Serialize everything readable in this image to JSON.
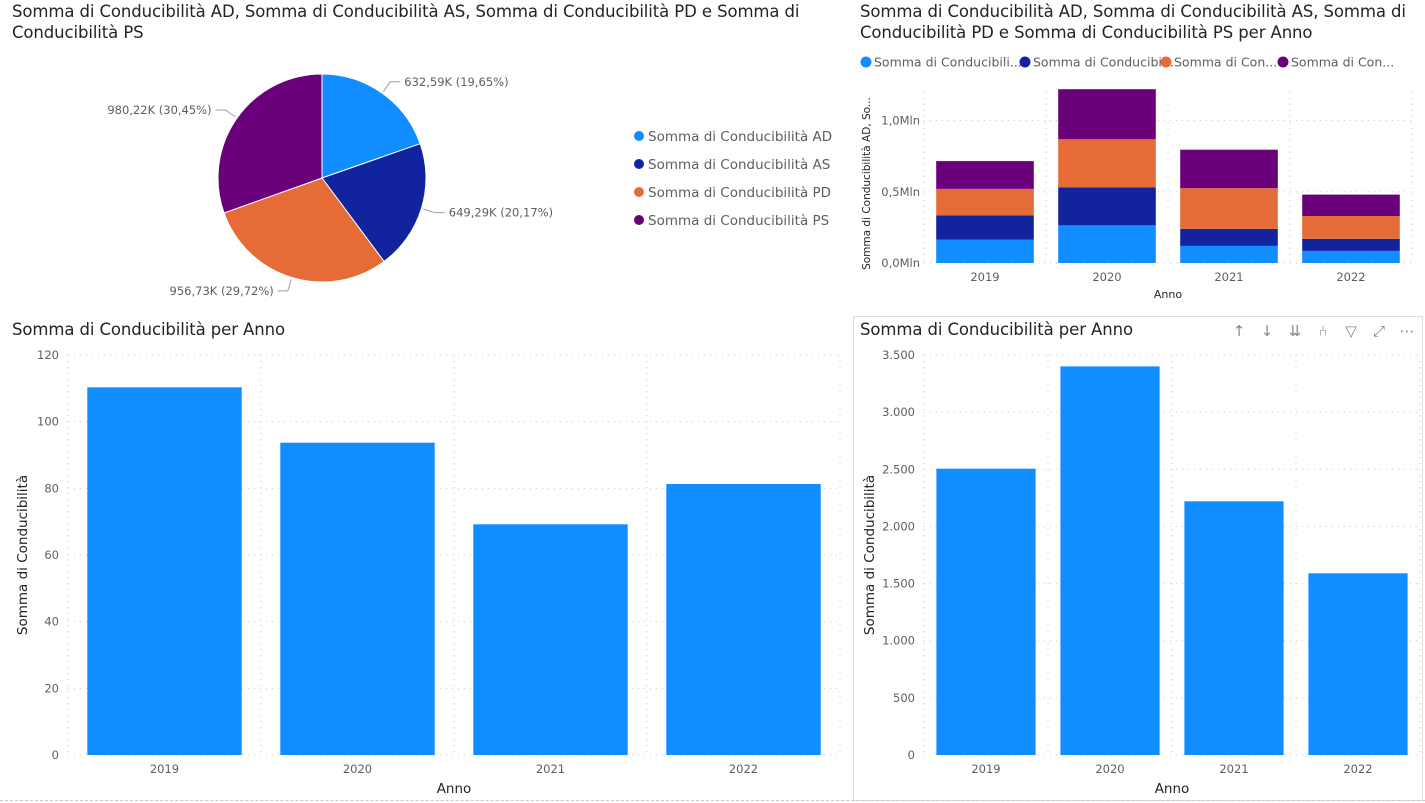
{
  "colors": {
    "ad": "#118DFF",
    "as": "#12239E",
    "pd": "#E66C37",
    "ps": "#6B007B",
    "bar": "#118DFF"
  },
  "toolbar": {
    "icons": [
      "arrow-up-icon",
      "arrow-down-icon",
      "double-arrow-down-icon",
      "expand-hierarchy-icon",
      "filter-icon",
      "focus-mode-icon",
      "more-options-icon"
    ],
    "glyphs": [
      "↑",
      "↓",
      "⇊",
      "⑃",
      "▽",
      "⤢",
      "⋯"
    ]
  },
  "chart_data": [
    {
      "type": "pie",
      "title": "Somma di Conducibilità AD, Somma di Conducibilità AS, Somma di Conducibilità PD e Somma di Conducibilità PS",
      "title_line1": "Somma di Conducibilità AD, Somma di Conducibilità AS, Somma di Conducibilità PD e Somma di",
      "title_line2": "Conducibilità PS",
      "legend_position": "right",
      "slices": [
        {
          "name": "Somma di Conducibilità AD",
          "value": 632590,
          "percent": 19.65,
          "label": "632,59K (19,65%)",
          "color": "#118DFF"
        },
        {
          "name": "Somma di Conducibilità AS",
          "value": 649290,
          "percent": 20.17,
          "label": "649,29K (20,17%)",
          "color": "#12239E"
        },
        {
          "name": "Somma di Conducibilità PD",
          "value": 956730,
          "percent": 29.72,
          "label": "956,73K (29,72%)",
          "color": "#E66C37"
        },
        {
          "name": "Somma di Conducibilità PS",
          "value": 980220,
          "percent": 30.45,
          "label": "980,22K (30,45%)",
          "color": "#6B007B"
        }
      ]
    },
    {
      "type": "bar",
      "stacked": true,
      "title": "Somma di Conducibilità AD, Somma di Conducibilità AS, Somma di Conducibilità PD e Somma di Conducibilità PS per Anno",
      "title_line1": "Somma di Conducibilità AD, Somma di Conducibilità AS, Somma di",
      "title_line2": "Conducibilità PD e Somma di Conducibilità PS per Anno",
      "legend_position": "top",
      "legend_labels": [
        "Somma di Conducibili...",
        "Somma di Conducibi...",
        "Somma di Con...",
        "Somma di Con..."
      ],
      "categories": [
        "2019",
        "2020",
        "2021",
        "2022"
      ],
      "series": [
        {
          "name": "Somma di Conducibilità AD",
          "color": "#118DFF",
          "values": [
            165000,
            265000,
            120000,
            85000
          ]
        },
        {
          "name": "Somma di Conducibilità AS",
          "color": "#12239E",
          "values": [
            170000,
            265000,
            120000,
            85000
          ]
        },
        {
          "name": "Somma di Conducibilità PD",
          "color": "#E66C37",
          "values": [
            185000,
            340000,
            285000,
            160000
          ]
        },
        {
          "name": "Somma di Conducibilità PS",
          "color": "#6B007B",
          "values": [
            195000,
            350000,
            270000,
            150000
          ]
        }
      ],
      "xlabel": "Anno",
      "ylabel": "Somma di Conducibilità AD, So...",
      "ylim": [
        0,
        1200000
      ],
      "yticks": [
        0,
        500000,
        1000000
      ],
      "ytick_labels": [
        "0,0Mln",
        "0,5Mln",
        "1,0Mln"
      ],
      "grid": true
    },
    {
      "type": "bar",
      "title": "Somma di Conducibilità per Anno",
      "categories": [
        "2019",
        "2020",
        "2021",
        "2022"
      ],
      "values": [
        110.3,
        93.7,
        69.2,
        81.3
      ],
      "color": "#118DFF",
      "xlabel": "Anno",
      "ylabel": "Somma di Conducibilità",
      "ylim": [
        0,
        120
      ],
      "yticks": [
        0,
        20,
        40,
        60,
        80,
        100,
        120
      ],
      "ytick_labels": [
        "0",
        "20",
        "40",
        "60",
        "80",
        "100",
        "120"
      ],
      "grid": true
    },
    {
      "type": "bar",
      "title": "Somma di Conducibilità per Anno",
      "categories": [
        "2019",
        "2020",
        "2021",
        "2022"
      ],
      "values": [
        2505,
        3400,
        2220,
        1590
      ],
      "color": "#118DFF",
      "xlabel": "Anno",
      "ylabel": "Somma di Conducibilità",
      "ylim": [
        0,
        3500
      ],
      "yticks": [
        0,
        500,
        1000,
        1500,
        2000,
        2500,
        3000,
        3500
      ],
      "ytick_labels": [
        "0",
        "500",
        "1.000",
        "1.500",
        "2.000",
        "2.500",
        "3.000",
        "3.500"
      ],
      "grid": true
    }
  ]
}
